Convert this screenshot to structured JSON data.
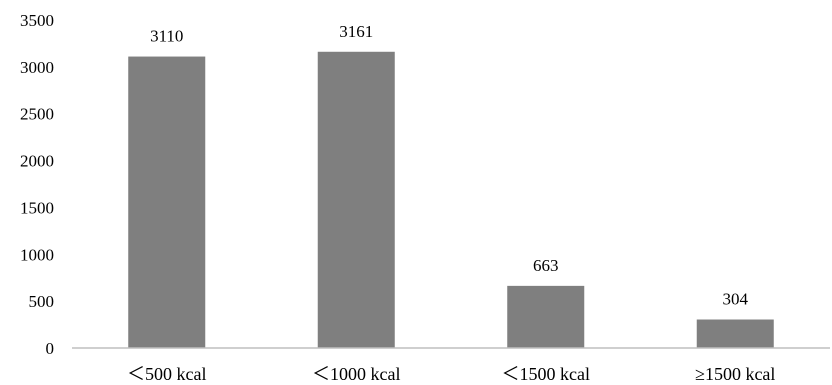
{
  "chart_data": {
    "type": "bar",
    "title": "",
    "xlabel": "",
    "ylabel": "",
    "categories": [
      "＜500 kcal",
      "＜1000 kcal",
      "＜1500 kcal",
      "≥1500 kcal"
    ],
    "values": [
      3110,
      3161,
      663,
      304
    ],
    "data_labels": [
      "3110",
      "3161",
      "663",
      "304"
    ],
    "ylim": [
      0,
      3500
    ],
    "yticks": [
      0,
      500,
      1000,
      1500,
      2000,
      2500,
      3000,
      3500
    ],
    "ytick_labels": [
      "0",
      "500",
      "1000",
      "1500",
      "2000",
      "2500",
      "3000",
      "3500"
    ],
    "grid": false,
    "legend": "none",
    "colors": {
      "bar": "#7f7f7f",
      "axis": "#bfbfbf",
      "text": "#000000"
    }
  }
}
